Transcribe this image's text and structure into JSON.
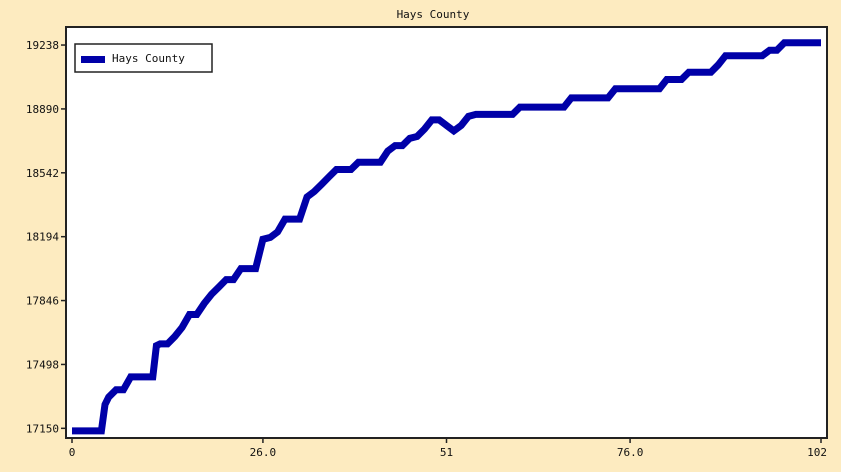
{
  "colors": {
    "background": "#fdebc0",
    "plot_background": "#ffffff",
    "series": "#0000a8",
    "frame": "#222222"
  },
  "chart_data": {
    "type": "line",
    "title": "Hays County",
    "xlabel": "",
    "ylabel": "",
    "xlim": [
      0,
      102
    ],
    "ylim": [
      17130,
      19260
    ],
    "x_ticks": [
      0,
      26.0,
      51,
      76.0,
      102
    ],
    "x_tick_labels": [
      "0",
      "26.0",
      "51",
      "76.0",
      "102"
    ],
    "y_ticks": [
      17150,
      17498,
      17846,
      18194,
      18542,
      18890,
      19238
    ],
    "y_tick_labels": [
      "17150",
      "17498",
      "17846",
      "18194",
      "18542",
      "18890",
      "19238"
    ],
    "grid": false,
    "legend": {
      "position": "top-left",
      "entries": [
        "Hays County"
      ]
    },
    "series": [
      {
        "name": "Hays County",
        "points": [
          [
            0,
            17136
          ],
          [
            1,
            17136
          ],
          [
            2,
            17136
          ],
          [
            3,
            17136
          ],
          [
            4,
            17136
          ],
          [
            4.5,
            17280
          ],
          [
            5,
            17320
          ],
          [
            6,
            17360
          ],
          [
            7,
            17360
          ],
          [
            8,
            17430
          ],
          [
            9,
            17430
          ],
          [
            10,
            17430
          ],
          [
            11,
            17430
          ],
          [
            11.5,
            17600
          ],
          [
            12,
            17610
          ],
          [
            13,
            17610
          ],
          [
            14,
            17650
          ],
          [
            15,
            17700
          ],
          [
            16,
            17770
          ],
          [
            17,
            17770
          ],
          [
            18,
            17830
          ],
          [
            19,
            17880
          ],
          [
            20,
            17920
          ],
          [
            21,
            17960
          ],
          [
            22,
            17960
          ],
          [
            23,
            18020
          ],
          [
            24,
            18020
          ],
          [
            25,
            18020
          ],
          [
            26,
            18180
          ],
          [
            27,
            18190
          ],
          [
            28,
            18220
          ],
          [
            29,
            18290
          ],
          [
            30,
            18290
          ],
          [
            31,
            18290
          ],
          [
            32,
            18410
          ],
          [
            33,
            18440
          ],
          [
            34,
            18480
          ],
          [
            35,
            18520
          ],
          [
            36,
            18560
          ],
          [
            37,
            18560
          ],
          [
            38,
            18560
          ],
          [
            39,
            18600
          ],
          [
            40,
            18600
          ],
          [
            41,
            18600
          ],
          [
            42,
            18600
          ],
          [
            43,
            18660
          ],
          [
            44,
            18690
          ],
          [
            45,
            18690
          ],
          [
            46,
            18730
          ],
          [
            47,
            18740
          ],
          [
            48,
            18780
          ],
          [
            49,
            18830
          ],
          [
            50,
            18830
          ],
          [
            51,
            18800
          ],
          [
            52,
            18770
          ],
          [
            53,
            18800
          ],
          [
            54,
            18850
          ],
          [
            55,
            18860
          ],
          [
            56,
            18860
          ],
          [
            57,
            18860
          ],
          [
            58,
            18860
          ],
          [
            59,
            18860
          ],
          [
            60,
            18860
          ],
          [
            61,
            18900
          ],
          [
            62,
            18900
          ],
          [
            63,
            18900
          ],
          [
            64,
            18900
          ],
          [
            65,
            18900
          ],
          [
            66,
            18900
          ],
          [
            67,
            18900
          ],
          [
            68,
            18950
          ],
          [
            69,
            18950
          ],
          [
            70,
            18950
          ],
          [
            71,
            18950
          ],
          [
            72,
            18950
          ],
          [
            73,
            18950
          ],
          [
            74,
            19000
          ],
          [
            75,
            19000
          ],
          [
            76,
            19000
          ],
          [
            77,
            19000
          ],
          [
            78,
            19000
          ],
          [
            79,
            19000
          ],
          [
            80,
            19000
          ],
          [
            81,
            19050
          ],
          [
            82,
            19050
          ],
          [
            83,
            19050
          ],
          [
            84,
            19090
          ],
          [
            85,
            19090
          ],
          [
            86,
            19090
          ],
          [
            87,
            19090
          ],
          [
            88,
            19130
          ],
          [
            89,
            19180
          ],
          [
            90,
            19180
          ],
          [
            91,
            19180
          ],
          [
            92,
            19180
          ],
          [
            93,
            19180
          ],
          [
            94,
            19180
          ],
          [
            95,
            19210
          ],
          [
            96,
            19210
          ],
          [
            97,
            19250
          ],
          [
            98,
            19250
          ],
          [
            99,
            19250
          ],
          [
            100,
            19250
          ],
          [
            101,
            19250
          ],
          [
            102,
            19250
          ]
        ]
      }
    ]
  }
}
